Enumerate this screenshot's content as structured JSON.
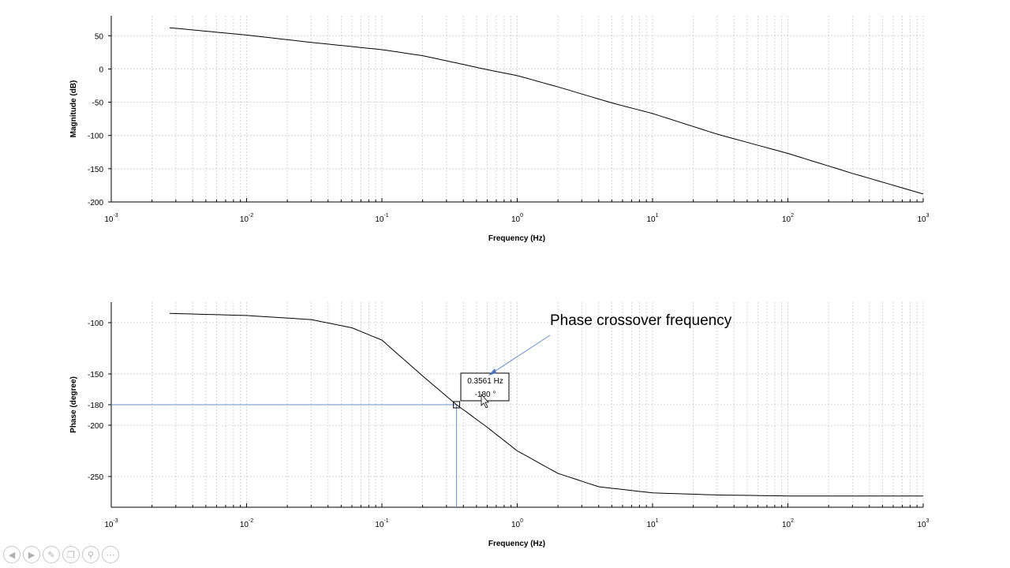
{
  "chart_data": [
    {
      "type": "line",
      "name": "magnitude",
      "xscale": "log",
      "xlim": [
        0.001,
        1000
      ],
      "ylim": [
        -200,
        80
      ],
      "xlabel": "Frequency (Hz)",
      "ylabel": "Magnitude (dB)",
      "xticks": [
        {
          "base": "10",
          "exp": "-3"
        },
        {
          "base": "10",
          "exp": "-2"
        },
        {
          "base": "10",
          "exp": "-1"
        },
        {
          "base": "10",
          "exp": "0"
        },
        {
          "base": "10",
          "exp": "1"
        },
        {
          "base": "10",
          "exp": "2"
        },
        {
          "base": "10",
          "exp": "3"
        }
      ],
      "yticks": [
        "50",
        "0",
        "-50",
        "-100",
        "-150",
        "-200"
      ],
      "grid": true,
      "series": [
        {
          "x": [
            0.0027,
            0.01,
            0.03,
            0.1,
            0.2,
            0.356,
            0.6,
            1,
            2,
            5,
            10,
            30,
            100,
            300,
            1000
          ],
          "y": [
            62,
            51,
            40,
            29,
            20,
            9,
            -1,
            -10,
            -27,
            -51,
            -67,
            -98,
            -127,
            -157,
            -188
          ]
        }
      ]
    },
    {
      "type": "line",
      "name": "phase",
      "xscale": "log",
      "xlim": [
        0.001,
        1000
      ],
      "ylim": [
        -280,
        -80
      ],
      "xlabel": "Frequency (Hz)",
      "ylabel": "Phase (degree)",
      "xticks": [
        {
          "base": "10",
          "exp": "-3"
        },
        {
          "base": "10",
          "exp": "-2"
        },
        {
          "base": "10",
          "exp": "-1"
        },
        {
          "base": "10",
          "exp": "0"
        },
        {
          "base": "10",
          "exp": "1"
        },
        {
          "base": "10",
          "exp": "2"
        },
        {
          "base": "10",
          "exp": "3"
        }
      ],
      "yticks": [
        "-100",
        "-150",
        "-180",
        "-200",
        "-250"
      ],
      "grid": true,
      "series": [
        {
          "x": [
            0.0027,
            0.01,
            0.03,
            0.06,
            0.1,
            0.2,
            0.356,
            0.6,
            1,
            2,
            4,
            10,
            30,
            100,
            1000
          ],
          "y": [
            -91,
            -93,
            -97,
            -105,
            -117,
            -152,
            -180,
            -202,
            -225,
            -247,
            -260,
            -266,
            -268,
            -269,
            -269
          ]
        }
      ],
      "datatip": {
        "x": 0.3561,
        "y": -180,
        "line1": "0.3561 Hz",
        "line2": "-180 °"
      },
      "annotation": "Phase crossover frequency"
    }
  ],
  "controls": [
    "back-icon",
    "forward-icon",
    "pen-icon",
    "copy-icon",
    "search-icon",
    "more-icon"
  ]
}
